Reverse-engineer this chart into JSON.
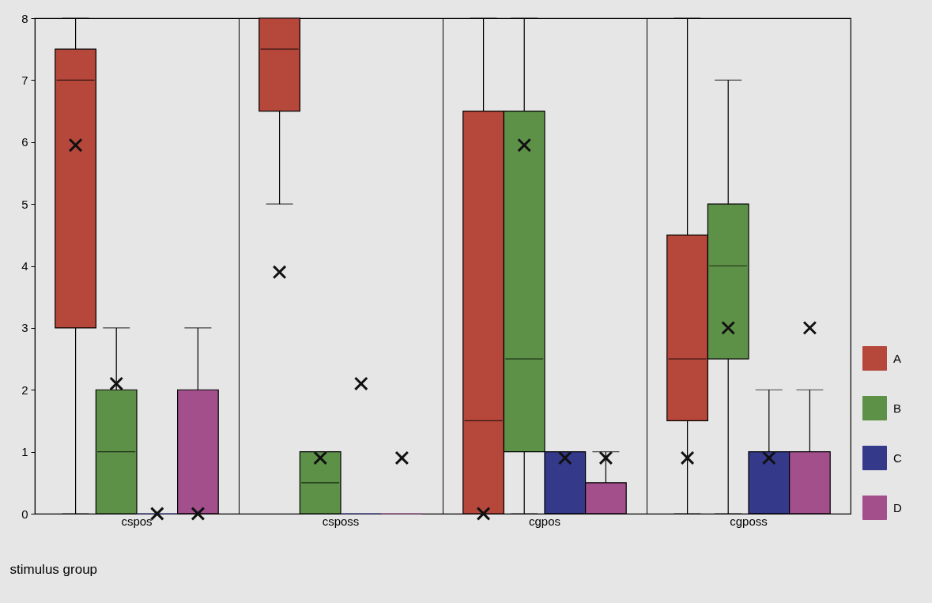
{
  "chart_data": {
    "type": "box",
    "xlabel": "stimulus group",
    "categories": [
      "cspos",
      "csposs",
      "cgpos",
      "cgposs"
    ],
    "ylim": [
      0,
      8
    ],
    "yticks": [
      {
        "value": 0,
        "label": "0"
      },
      {
        "value": 1,
        "label": "1"
      },
      {
        "value": 2,
        "label": "2"
      },
      {
        "value": 3,
        "label": "3"
      },
      {
        "value": 4,
        "label": "4"
      },
      {
        "value": 5,
        "label": "5"
      },
      {
        "value": 6,
        "label": "6"
      },
      {
        "value": 7,
        "label": "7"
      },
      {
        "value": 8,
        "label": "8"
      }
    ],
    "grid": "x",
    "legend": "right",
    "marker": "cross",
    "series": [
      {
        "name": "A",
        "color": "#b5473b",
        "boxes": [
          {
            "low": 0,
            "q1": 3,
            "median": 7,
            "q3": 7.5,
            "high": 8,
            "mean": 5.95
          },
          {
            "low": 5,
            "q1": 6.5,
            "median": 7.5,
            "q3": 8,
            "high": 8,
            "mean": 3.9
          },
          {
            "low": 0,
            "q1": 0,
            "median": 1.5,
            "q3": 6.5,
            "high": 8,
            "mean": 0
          },
          {
            "low": 0,
            "q1": 1.5,
            "median": 2.5,
            "q3": 4.5,
            "high": 8,
            "mean": 0.9
          }
        ]
      },
      {
        "name": "B",
        "color": "#5e9148",
        "boxes": [
          {
            "low": 0,
            "q1": 0,
            "median": 1,
            "q3": 2,
            "high": 3,
            "mean": 2.1
          },
          {
            "low": 0,
            "q1": 0,
            "median": 0.5,
            "q3": 1,
            "high": 1,
            "mean": 0.9
          },
          {
            "low": 0,
            "q1": 1,
            "median": 2.5,
            "q3": 6.5,
            "high": 8,
            "mean": 5.95
          },
          {
            "low": 0,
            "q1": 2.5,
            "median": 4,
            "q3": 5,
            "high": 7,
            "mean": 3
          }
        ]
      },
      {
        "name": "C",
        "color": "#34398a",
        "boxes": [
          {
            "low": 0,
            "q1": 0,
            "median": 0,
            "q3": 0,
            "high": 0,
            "mean": 0
          },
          {
            "low": 0,
            "q1": 0,
            "median": 0,
            "q3": 0,
            "high": 0,
            "mean": 2.1
          },
          {
            "low": 0,
            "q1": 0,
            "median": 0,
            "q3": 1,
            "high": 1,
            "mean": 0.9
          },
          {
            "low": 0,
            "q1": 0,
            "median": 0,
            "q3": 1,
            "high": 2,
            "mean": 0.9
          }
        ]
      },
      {
        "name": "D",
        "color": "#a24f8c",
        "boxes": [
          {
            "low": 0,
            "q1": 0,
            "median": 0,
            "q3": 2,
            "high": 3,
            "mean": 0
          },
          {
            "low": 0,
            "q1": 0,
            "median": 0,
            "q3": 0,
            "high": 0,
            "mean": 0.9
          },
          {
            "low": 0,
            "q1": 0,
            "median": 0,
            "q3": 0.5,
            "high": 1,
            "mean": 0.9
          },
          {
            "low": 0,
            "q1": 0,
            "median": 0,
            "q3": 1,
            "high": 2,
            "mean": 3
          }
        ]
      }
    ]
  }
}
